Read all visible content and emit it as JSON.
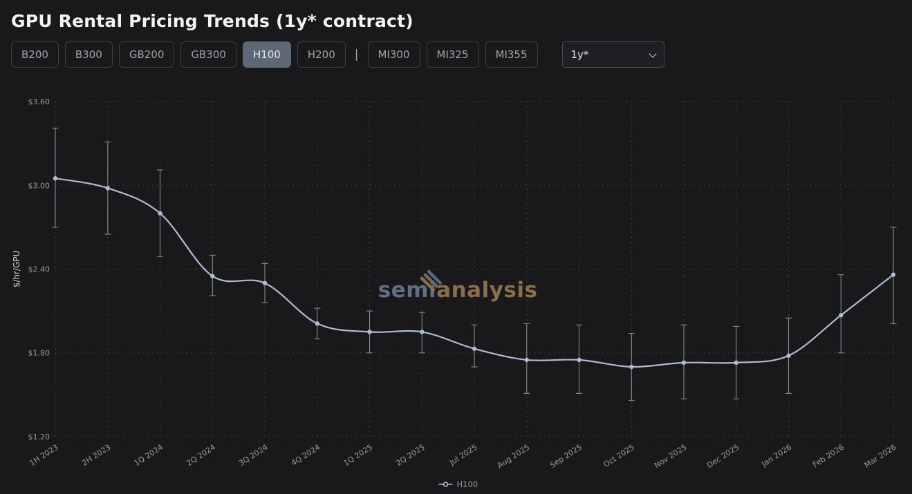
{
  "page": {
    "title": "GPU Rental Pricing Trends (1y* contract)"
  },
  "controls": {
    "buttons": [
      {
        "label": "B200",
        "active": false
      },
      {
        "label": "B300",
        "active": false
      },
      {
        "label": "GB200",
        "active": false
      },
      {
        "label": "GB300",
        "active": false
      },
      {
        "label": "H100",
        "active": true
      },
      {
        "label": "H200",
        "active": false
      },
      {
        "label": "MI300",
        "active": false
      },
      {
        "label": "MI325",
        "active": false
      },
      {
        "label": "MI355",
        "active": false
      }
    ],
    "separator": "|",
    "contract_dropdown": {
      "value": "1y*"
    }
  },
  "watermark": {
    "part1": "semi",
    "part2": "analysis"
  },
  "chart_data": {
    "type": "line",
    "title": "GPU Rental Pricing Trends (1y* contract)",
    "xlabel": "",
    "ylabel": "$/hr/GPU",
    "ylim": [
      1.2,
      3.6
    ],
    "yticks": [
      3.6,
      3.0,
      2.4,
      1.8,
      1.2
    ],
    "ytick_labels": [
      "$3.60",
      "$3.00",
      "$2.40",
      "$1.80",
      "$1.20"
    ],
    "grid": true,
    "legend_position": "bottom",
    "categories": [
      "1H 2023",
      "2H 2023",
      "1Q 2024",
      "2Q 2024",
      "3Q 2024",
      "4Q 2024",
      "1Q 2025",
      "2Q 2025",
      "Jul 2025",
      "Aug 2025",
      "Sep 2025",
      "Oct 2025",
      "Nov 2025",
      "Dec 2025",
      "Jan 2026",
      "Feb 2026",
      "Mar 2026"
    ],
    "series": [
      {
        "name": "H100",
        "color": "#aebdd2",
        "error_color": "#8b9199",
        "values": [
          3.05,
          2.98,
          2.8,
          2.35,
          2.3,
          2.01,
          1.95,
          1.95,
          1.83,
          1.75,
          1.75,
          1.7,
          1.73,
          1.73,
          1.78,
          2.07,
          2.36
        ],
        "error_low": [
          2.7,
          2.65,
          2.49,
          2.21,
          2.16,
          1.9,
          1.8,
          1.8,
          1.7,
          1.51,
          1.51,
          1.46,
          1.47,
          1.47,
          1.51,
          1.8,
          2.01
        ],
        "error_high": [
          3.41,
          3.31,
          3.11,
          2.5,
          2.44,
          2.12,
          2.1,
          2.09,
          2.0,
          2.01,
          2.0,
          1.94,
          2.0,
          1.99,
          2.05,
          2.36,
          2.7
        ]
      }
    ]
  }
}
